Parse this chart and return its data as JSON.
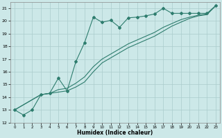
{
  "title": "",
  "xlabel": "Humidex (Indice chaleur)",
  "ylabel": "",
  "bg_color": "#cce8e8",
  "grid_color": "#aacccc",
  "line_color": "#2e7d6e",
  "xlim": [
    -0.5,
    23.5
  ],
  "ylim": [
    12,
    21.5
  ],
  "yticks": [
    12,
    13,
    14,
    15,
    16,
    17,
    18,
    19,
    20,
    21
  ],
  "xticks": [
    0,
    1,
    2,
    3,
    4,
    5,
    6,
    7,
    8,
    9,
    10,
    11,
    12,
    13,
    14,
    15,
    16,
    17,
    18,
    19,
    20,
    21,
    22,
    23
  ],
  "series": [
    {
      "x": [
        0,
        1,
        2,
        3,
        4,
        5,
        6,
        7,
        8,
        9,
        10,
        11,
        12,
        13,
        14,
        15,
        16,
        17,
        18,
        19,
        20,
        21,
        22,
        23
      ],
      "y": [
        13.0,
        12.6,
        13.0,
        14.2,
        14.3,
        15.5,
        14.5,
        16.8,
        18.3,
        20.3,
        19.9,
        20.05,
        19.5,
        20.25,
        20.3,
        20.4,
        20.55,
        21.0,
        20.6,
        20.6,
        20.6,
        20.6,
        20.6,
        21.2
      ],
      "marker": "D",
      "markersize": 2.0,
      "linewidth": 0.8,
      "linestyle": "-"
    },
    {
      "x": [
        0,
        3,
        4,
        5,
        6,
        7,
        8,
        9,
        10,
        11,
        12,
        13,
        14,
        15,
        16,
        17,
        18,
        19,
        20,
        21,
        22,
        23
      ],
      "y": [
        13.0,
        14.2,
        14.3,
        14.4,
        14.5,
        14.8,
        15.2,
        16.0,
        16.7,
        17.1,
        17.5,
        17.9,
        18.2,
        18.5,
        18.8,
        19.2,
        19.6,
        19.9,
        20.2,
        20.4,
        20.5,
        21.2
      ],
      "marker": null,
      "markersize": 0,
      "linewidth": 0.8,
      "linestyle": "-"
    },
    {
      "x": [
        0,
        3,
        4,
        5,
        6,
        7,
        8,
        9,
        10,
        11,
        12,
        13,
        14,
        15,
        16,
        17,
        18,
        19,
        20,
        21,
        22,
        23
      ],
      "y": [
        13.0,
        14.2,
        14.3,
        14.6,
        14.7,
        15.1,
        15.6,
        16.4,
        17.0,
        17.4,
        17.8,
        18.2,
        18.5,
        18.8,
        19.1,
        19.5,
        19.8,
        20.1,
        20.3,
        20.45,
        20.55,
        21.2
      ],
      "marker": null,
      "markersize": 0,
      "linewidth": 0.8,
      "linestyle": "-"
    }
  ]
}
